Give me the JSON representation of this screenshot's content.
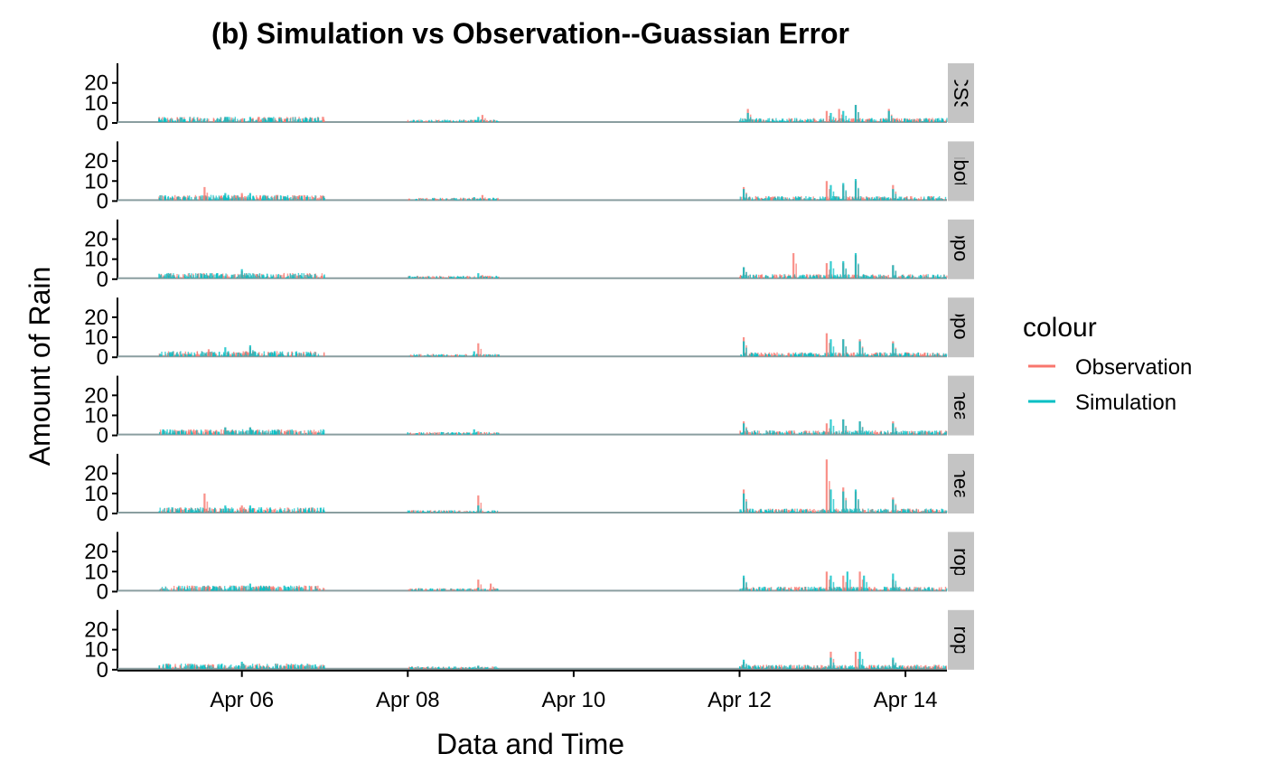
{
  "chart_data": {
    "type": "line",
    "title": "(b) Simulation vs Observation--Guassian Error",
    "xlabel": "Data and Time",
    "ylabel": "Amount of Rain",
    "x_ticks": [
      "Apr 06",
      "Apr 08",
      "Apr 10",
      "Apr 12",
      "Apr 14"
    ],
    "x_tick_days": [
      6,
      8,
      10,
      12,
      14
    ],
    "xlim_days": [
      4.5,
      14.5
    ],
    "y_ticks": [
      0,
      10,
      20
    ],
    "ylim": [
      0,
      28
    ],
    "grid": false,
    "legend": {
      "title": "colour",
      "position": "right",
      "entries": [
        {
          "name": "Observation",
          "color": "#F8766D"
        },
        {
          "name": "Simulation",
          "color": "#00BFC4"
        }
      ]
    },
    "facet_labels": [
      "CSS",
      "ubotr",
      "opoli",
      "opoli",
      "theat",
      "theat",
      "nropc",
      "nropc"
    ],
    "panels": [
      {
        "label": "CSS",
        "observation_peaks": [
          [
            5.8,
            3
          ],
          [
            6.2,
            3
          ],
          [
            8.9,
            4
          ],
          [
            12.1,
            7
          ],
          [
            13.05,
            6
          ],
          [
            13.2,
            7
          ],
          [
            13.4,
            9
          ],
          [
            13.8,
            7
          ]
        ],
        "simulation_peaks": [
          [
            5.8,
            3
          ],
          [
            6.1,
            3
          ],
          [
            8.85,
            3
          ],
          [
            12.1,
            5
          ],
          [
            13.1,
            5
          ],
          [
            13.25,
            6
          ],
          [
            13.4,
            9
          ],
          [
            13.8,
            6
          ]
        ]
      },
      {
        "label": "ubotr",
        "observation_peaks": [
          [
            5.55,
            7
          ],
          [
            6.0,
            4
          ],
          [
            8.9,
            3
          ],
          [
            12.05,
            7
          ],
          [
            13.05,
            10
          ],
          [
            13.25,
            8
          ],
          [
            13.4,
            10
          ],
          [
            13.85,
            8
          ]
        ],
        "simulation_peaks": [
          [
            5.8,
            4
          ],
          [
            6.1,
            4
          ],
          [
            8.8,
            2
          ],
          [
            12.05,
            6
          ],
          [
            13.1,
            8
          ],
          [
            13.25,
            9
          ],
          [
            13.4,
            11
          ],
          [
            13.85,
            6
          ]
        ]
      },
      {
        "label": "opoli",
        "observation_peaks": [
          [
            6.0,
            4
          ],
          [
            8.9,
            2
          ],
          [
            12.05,
            6
          ],
          [
            12.65,
            13
          ],
          [
            13.05,
            8
          ],
          [
            13.25,
            8
          ],
          [
            13.4,
            12
          ],
          [
            13.85,
            7
          ]
        ],
        "simulation_peaks": [
          [
            6.0,
            5
          ],
          [
            8.85,
            3
          ],
          [
            12.05,
            6
          ],
          [
            13.1,
            9
          ],
          [
            13.25,
            9
          ],
          [
            13.4,
            13
          ],
          [
            13.85,
            7
          ]
        ]
      },
      {
        "label": "opoli",
        "observation_peaks": [
          [
            5.6,
            4
          ],
          [
            6.1,
            5
          ],
          [
            8.85,
            7
          ],
          [
            12.05,
            10
          ],
          [
            13.05,
            12
          ],
          [
            13.25,
            9
          ],
          [
            13.45,
            9
          ],
          [
            13.85,
            8
          ]
        ],
        "simulation_peaks": [
          [
            5.8,
            5
          ],
          [
            6.1,
            6
          ],
          [
            8.8,
            3
          ],
          [
            12.05,
            8
          ],
          [
            13.1,
            9
          ],
          [
            13.25,
            9
          ],
          [
            13.45,
            8
          ],
          [
            13.85,
            7
          ]
        ]
      },
      {
        "label": "theat",
        "observation_peaks": [
          [
            5.8,
            4
          ],
          [
            6.1,
            4
          ],
          [
            8.85,
            2
          ],
          [
            12.05,
            7
          ],
          [
            13.05,
            6
          ],
          [
            13.25,
            8
          ],
          [
            13.45,
            7
          ],
          [
            13.85,
            7
          ]
        ],
        "simulation_peaks": [
          [
            5.8,
            4
          ],
          [
            6.1,
            4
          ],
          [
            8.8,
            3
          ],
          [
            12.05,
            6
          ],
          [
            13.1,
            8
          ],
          [
            13.25,
            8
          ],
          [
            13.45,
            7
          ],
          [
            13.85,
            6
          ]
        ]
      },
      {
        "label": "theat",
        "observation_peaks": [
          [
            5.55,
            10
          ],
          [
            6.0,
            4
          ],
          [
            8.85,
            9
          ],
          [
            12.05,
            12
          ],
          [
            13.05,
            27
          ],
          [
            13.25,
            13
          ],
          [
            13.4,
            11
          ],
          [
            13.85,
            8
          ]
        ],
        "simulation_peaks": [
          [
            5.8,
            4
          ],
          [
            6.1,
            4
          ],
          [
            8.85,
            4
          ],
          [
            12.05,
            10
          ],
          [
            13.1,
            12
          ],
          [
            13.25,
            11
          ],
          [
            13.4,
            12
          ],
          [
            13.85,
            7
          ]
        ]
      },
      {
        "label": "nropc",
        "observation_peaks": [
          [
            5.4,
            3
          ],
          [
            6.0,
            3
          ],
          [
            8.55,
            1
          ],
          [
            8.85,
            6
          ],
          [
            9.0,
            4
          ],
          [
            12.05,
            7
          ],
          [
            13.05,
            10
          ],
          [
            13.25,
            8
          ],
          [
            13.45,
            10
          ],
          [
            13.85,
            6
          ]
        ],
        "simulation_peaks": [
          [
            5.9,
            3
          ],
          [
            6.1,
            4
          ],
          [
            8.85,
            2
          ],
          [
            12.05,
            8
          ],
          [
            13.1,
            8
          ],
          [
            13.3,
            10
          ],
          [
            13.5,
            8
          ],
          [
            13.85,
            9
          ]
        ]
      },
      {
        "label": "nropc",
        "observation_peaks": [
          [
            6.0,
            3
          ],
          [
            8.85,
            2
          ],
          [
            12.05,
            4
          ],
          [
            13.1,
            9
          ],
          [
            13.4,
            9
          ],
          [
            13.85,
            5
          ]
        ],
        "simulation_peaks": [
          [
            6.0,
            4
          ],
          [
            8.85,
            2
          ],
          [
            12.05,
            5
          ],
          [
            13.1,
            6
          ],
          [
            13.45,
            9
          ],
          [
            13.85,
            6
          ]
        ]
      }
    ]
  }
}
